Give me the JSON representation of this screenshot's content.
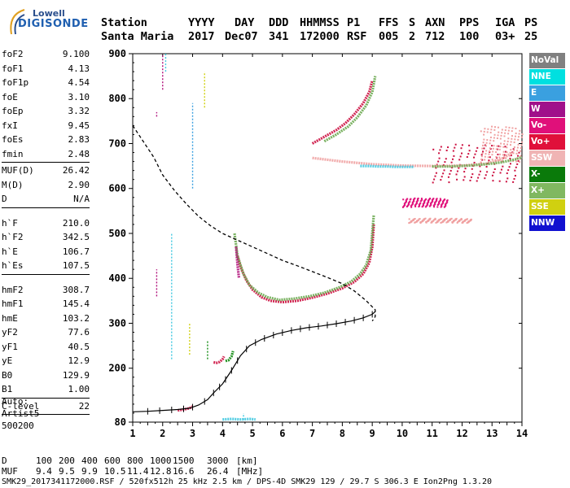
{
  "logo": {
    "line1": "Lowell",
    "line2": "DIGISONDE"
  },
  "header": {
    "row1": [
      "Station",
      "YYYY",
      "DAY",
      "DDD",
      "HHMMSS",
      "P1",
      "FFS",
      "S",
      "AXN",
      "PPS",
      "IGA",
      "PS"
    ],
    "row2": [
      "Santa Maria",
      "2017",
      "Dec07",
      "341",
      "172000",
      "RSF",
      "005",
      "2",
      "712",
      "100",
      "03+",
      "25"
    ]
  },
  "params_group1": [
    {
      "k": "foF2",
      "v": "9.100"
    },
    {
      "k": "foF1",
      "v": "4.13"
    },
    {
      "k": "foF1p",
      "v": "4.54"
    },
    {
      "k": "foE",
      "v": "3.10"
    },
    {
      "k": "foEp",
      "v": "3.32"
    },
    {
      "k": "fxI",
      "v": "9.45"
    },
    {
      "k": "foEs",
      "v": "2.83"
    },
    {
      "k": "fmin",
      "v": "2.48"
    }
  ],
  "params_group2": [
    {
      "k": "MUF(D)",
      "v": "26.42"
    },
    {
      "k": "M(D)",
      "v": "2.90"
    },
    {
      "k": "D",
      "v": "N/A"
    }
  ],
  "params_group3": [
    {
      "k": "h`F",
      "v": "210.0"
    },
    {
      "k": "h`F2",
      "v": "342.5"
    },
    {
      "k": "h`E",
      "v": "106.7"
    },
    {
      "k": "h`Es",
      "v": "107.5"
    }
  ],
  "params_group4": [
    {
      "k": "hmF2",
      "v": "308.7"
    },
    {
      "k": "hmF1",
      "v": "145.4"
    },
    {
      "k": "hmE",
      "v": "103.2"
    },
    {
      "k": "yF2",
      "v": "77.6"
    },
    {
      "k": "yF1",
      "v": "40.5"
    },
    {
      "k": "yE",
      "v": "12.9"
    },
    {
      "k": "B0",
      "v": "129.9"
    },
    {
      "k": "B1",
      "v": "1.00"
    }
  ],
  "params_group5": [
    {
      "k": "C-level",
      "v": "22"
    }
  ],
  "auto": {
    "line1": "Auto:",
    "line2": "Artist5",
    "line3": "500200"
  },
  "legend": [
    {
      "label": "NoVal",
      "color": "#808080"
    },
    {
      "label": "NNE",
      "color": "#00e0e0"
    },
    {
      "label": "E",
      "color": "#3aa0e0"
    },
    {
      "label": "W",
      "color": "#a0108a"
    },
    {
      "label": "Vo-",
      "color": "#e0107a"
    },
    {
      "label": "Vo+",
      "color": "#e0103a"
    },
    {
      "label": "SSW",
      "color": "#f0b4b4"
    },
    {
      "label": "X-",
      "color": "#0a7a0a"
    },
    {
      "label": "X+",
      "color": "#80b860"
    },
    {
      "label": "SSE",
      "color": "#d0d010"
    },
    {
      "label": "NNW",
      "color": "#1010d0"
    }
  ],
  "bottom": {
    "d_label": "D",
    "d_values": [
      "100",
      "200",
      "400",
      "600",
      "800",
      "1000",
      "1500",
      "3000"
    ],
    "d_unit": "[km]",
    "muf_label": "MUF",
    "muf_values": [
      "9.4",
      "9.5",
      "9.9",
      "10.5",
      "11.4",
      "12.8",
      "16.6",
      "26.4"
    ],
    "muf_unit": "[MHz]",
    "footer": "SMK29_2017341172000.RSF / 520fx512h 25 kHz 2.5 km / DPS-4D SMK29 129 / 29.7 S 306.3 E Ion2Png 1.3.20"
  },
  "chart_data": {
    "type": "scatter",
    "xlabel": "",
    "ylabel": "",
    "xlim": [
      1,
      14
    ],
    "ylim": [
      80,
      900
    ],
    "x_ticks": [
      1,
      2,
      3,
      4,
      5,
      6,
      7,
      8,
      9,
      10,
      11,
      12,
      13,
      14
    ],
    "y_ticks": [
      80,
      200,
      300,
      400,
      500,
      600,
      700,
      800,
      900
    ],
    "grid": false,
    "profile": {
      "x": [
        1.0,
        1.5,
        2.0,
        2.5,
        2.9,
        3.2,
        3.5,
        3.7,
        4.0,
        4.3,
        4.6,
        4.9,
        5.3,
        5.8,
        6.3,
        6.8,
        7.3,
        7.8,
        8.3,
        8.7,
        9.0,
        9.1
      ],
      "y": [
        103,
        104,
        106,
        108,
        111,
        118,
        130,
        145,
        165,
        195,
        228,
        250,
        264,
        276,
        284,
        290,
        294,
        299,
        305,
        312,
        320,
        326
      ],
      "ticks_x": [
        1.5,
        1.9,
        2.3,
        2.7,
        3.0,
        3.4,
        3.7,
        3.9,
        4.1,
        4.3,
        4.5,
        4.8,
        5.1,
        5.4,
        5.7,
        6.0,
        6.3,
        6.6,
        6.9,
        7.2,
        7.5,
        7.8,
        8.1,
        8.4,
        8.7,
        9.0
      ]
    },
    "dashed_curve": {
      "x": [
        1.0,
        1.3,
        1.7,
        2.0,
        2.4,
        2.8,
        3.2,
        3.6,
        4.0,
        4.5,
        5.0,
        5.5,
        6.0,
        6.5,
        7.0,
        7.5,
        8.0,
        8.4,
        8.8,
        9.1,
        9.1,
        9.0
      ],
      "y": [
        740,
        710,
        670,
        630,
        595,
        565,
        538,
        517,
        500,
        485,
        470,
        455,
        440,
        428,
        415,
        402,
        388,
        372,
        350,
        330,
        315,
        305
      ]
    },
    "traces": [
      {
        "series": "Vo+",
        "color": "#cc1040",
        "x": [
          4.5,
          4.6,
          4.8,
          5.0,
          5.3,
          5.6,
          6.0,
          6.5,
          7.0,
          7.5,
          8.0,
          8.4,
          8.7,
          8.9,
          9.0,
          9.05
        ],
        "y": [
          450,
          425,
          395,
          375,
          358,
          350,
          347,
          350,
          357,
          366,
          378,
          392,
          410,
          435,
          470,
          520
        ]
      },
      {
        "series": "X+",
        "color": "#6aa84f",
        "x": [
          4.4,
          4.5,
          4.7,
          4.9,
          5.2,
          5.5,
          5.9,
          6.4,
          6.9,
          7.4,
          7.9,
          8.3,
          8.6,
          8.8,
          8.95,
          9.05
        ],
        "y": [
          500,
          450,
          410,
          385,
          368,
          358,
          352,
          355,
          360,
          368,
          380,
          393,
          410,
          430,
          462,
          540
        ]
      },
      {
        "series": "W",
        "color": "#b0107a",
        "x": [
          4.45,
          4.5,
          4.55
        ],
        "y": [
          470,
          430,
          400
        ]
      },
      {
        "series": "Vo+",
        "color": "#cc1040",
        "x": [
          7.0,
          7.4,
          7.8,
          8.1,
          8.4,
          8.7,
          8.9,
          9.0
        ],
        "y": [
          700,
          715,
          730,
          745,
          765,
          790,
          815,
          840
        ]
      },
      {
        "series": "X+",
        "color": "#6aa84f",
        "x": [
          7.4,
          7.8,
          8.2,
          8.5,
          8.8,
          9.0,
          9.1
        ],
        "y": [
          705,
          720,
          738,
          758,
          785,
          815,
          850
        ]
      },
      {
        "series": "SSW",
        "color": "#f0a0a0",
        "x": [
          7.0,
          8.0,
          9.0,
          10.0,
          11.0,
          12.0,
          12.8,
          13.3,
          13.7
        ],
        "y": [
          668,
          660,
          654,
          651,
          650,
          651,
          655,
          665,
          680
        ]
      },
      {
        "series": "NNE",
        "color": "#40c8e0",
        "x": [
          8.6,
          8.9,
          9.2,
          9.5,
          9.8,
          10.1,
          10.4
        ],
        "y": [
          650,
          650,
          649,
          649,
          648,
          648,
          648
        ]
      },
      {
        "series": "X+",
        "color": "#6aa84f",
        "x": [
          11.0,
          11.6,
          12.2,
          12.8,
          13.3,
          13.8,
          14.0
        ],
        "y": [
          649,
          649,
          651,
          654,
          658,
          665,
          670
        ]
      },
      {
        "series": "Vo+",
        "color": "#cc1040",
        "x": [
          3.7,
          3.8,
          3.9,
          4.0,
          4.05
        ],
        "y": [
          213,
          212,
          214,
          220,
          226
        ]
      },
      {
        "series": "X-",
        "color": "#108a10",
        "x": [
          4.1,
          4.2,
          4.3,
          4.35
        ],
        "y": [
          216,
          218,
          226,
          238
        ]
      },
      {
        "series": "NNE",
        "color": "#40c8e0",
        "x": [
          4.0,
          4.3,
          4.6,
          4.9,
          5.1
        ],
        "y": [
          86,
          87,
          86,
          87,
          86
        ]
      },
      {
        "series": "Vo+",
        "color": "#cc1040",
        "x": [
          2.5,
          2.7,
          2.9,
          3.0
        ],
        "y": [
          106,
          108,
          111,
          115
        ]
      }
    ],
    "spikes": [
      {
        "series": "W",
        "color": "#b0107a",
        "x": 1.8,
        "y0": 360,
        "y1": 420
      },
      {
        "series": "NNE",
        "color": "#40c8e0",
        "x": 2.3,
        "y0": 220,
        "y1": 500
      },
      {
        "series": "E",
        "color": "#3aa0e0",
        "x": 3.0,
        "y0": 600,
        "y1": 790
      },
      {
        "series": "SSE",
        "color": "#d0d010",
        "x": 3.4,
        "y0": 780,
        "y1": 860
      },
      {
        "series": "SSE",
        "color": "#d0d010",
        "x": 2.9,
        "y0": 230,
        "y1": 300
      },
      {
        "series": "X-",
        "color": "#108a10",
        "x": 3.5,
        "y0": 220,
        "y1": 260
      },
      {
        "series": "NNE",
        "color": "#40c8e0",
        "x": 4.7,
        "y0": 85,
        "y1": 100
      },
      {
        "series": "W",
        "color": "#b0107a",
        "x": 2.0,
        "y0": 820,
        "y1": 900
      },
      {
        "series": "NNE",
        "color": "#40c8e0",
        "x": 2.1,
        "y0": 860,
        "y1": 900
      },
      {
        "series": "W",
        "color": "#b0107a",
        "x": 1.8,
        "y0": 760,
        "y1": 770
      }
    ],
    "clusters": [
      {
        "series": "Vo+",
        "color": "#cc1040",
        "x0": 11.0,
        "x1": 13.9,
        "y0": 615,
        "y1": 700
      },
      {
        "series": "SSW",
        "color": "#f0a0a0",
        "x0": 12.6,
        "x1": 14.0,
        "y0": 660,
        "y1": 740
      },
      {
        "series": "Vo-",
        "color": "#e0107a",
        "x0": 10.0,
        "x1": 11.5,
        "y0": 560,
        "y1": 580
      },
      {
        "series": "SSW",
        "color": "#f0a0a0",
        "x0": 10.2,
        "x1": 12.3,
        "y0": 525,
        "y1": 535
      }
    ]
  }
}
